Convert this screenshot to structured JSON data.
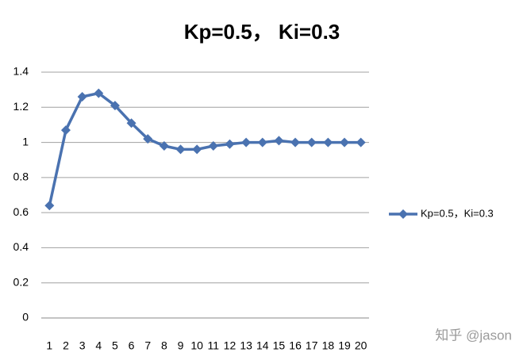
{
  "chart_data": {
    "type": "line",
    "title": "Kp=0.5， Ki=0.3",
    "categories": [
      "1",
      "2",
      "3",
      "4",
      "5",
      "6",
      "7",
      "8",
      "9",
      "10",
      "11",
      "12",
      "13",
      "14",
      "15",
      "16",
      "17",
      "18",
      "19",
      "20"
    ],
    "series": [
      {
        "name": "Kp=0.5，Ki=0.3",
        "color": "#4a72b0",
        "values": [
          0.64,
          1.07,
          1.26,
          1.28,
          1.21,
          1.11,
          1.02,
          0.98,
          0.96,
          0.96,
          0.98,
          0.99,
          1.0,
          1.0,
          1.01,
          1.0,
          1.0,
          1.0,
          1.0,
          1.0
        ]
      }
    ],
    "ylim": [
      0,
      1.4
    ],
    "yticks": [
      0,
      0.2,
      0.4,
      0.6,
      0.8,
      1,
      1.2,
      1.4
    ],
    "grid": true,
    "legend": "right",
    "watermark": "知乎 @jason"
  }
}
